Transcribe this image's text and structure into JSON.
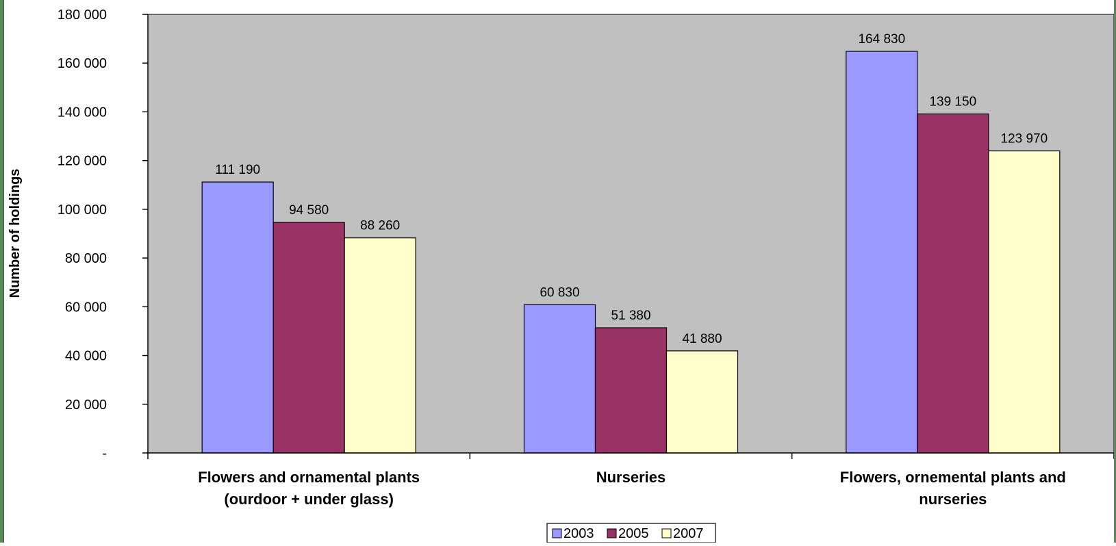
{
  "chart_data": {
    "type": "bar",
    "title": "",
    "ylabel": "Number of holdings",
    "xlabel": "",
    "ylim": [
      0,
      180000
    ],
    "yticks": [
      0,
      20000,
      40000,
      60000,
      80000,
      100000,
      120000,
      140000,
      160000,
      180000
    ],
    "ytick_labels": [
      "-",
      "20 000",
      "40 000",
      "60 000",
      "80 000",
      "100 000",
      "120 000",
      "140 000",
      "160 000",
      "180 000"
    ],
    "categories": [
      [
        "Flowers and ornamental plants",
        "(ourdoor + under glass)"
      ],
      [
        "Nurseries"
      ],
      [
        "Flowers, ornemental plants and",
        "nurseries"
      ]
    ],
    "series": [
      {
        "name": "2003",
        "color": "#9999ff",
        "values": [
          111190,
          60830,
          164830
        ],
        "labels": [
          "111 190",
          "60 830",
          "164 830"
        ]
      },
      {
        "name": "2005",
        "color": "#993366",
        "values": [
          94580,
          51380,
          139150
        ],
        "labels": [
          "94 580",
          "51 380",
          "139 150"
        ]
      },
      {
        "name": "2007",
        "color": "#ffffcc",
        "values": [
          88260,
          41880,
          123970
        ],
        "labels": [
          "88 260",
          "41 880",
          "123 970"
        ]
      }
    ],
    "grid": false,
    "plot_background": "#c0c0c0",
    "legend_position": "bottom-center"
  }
}
